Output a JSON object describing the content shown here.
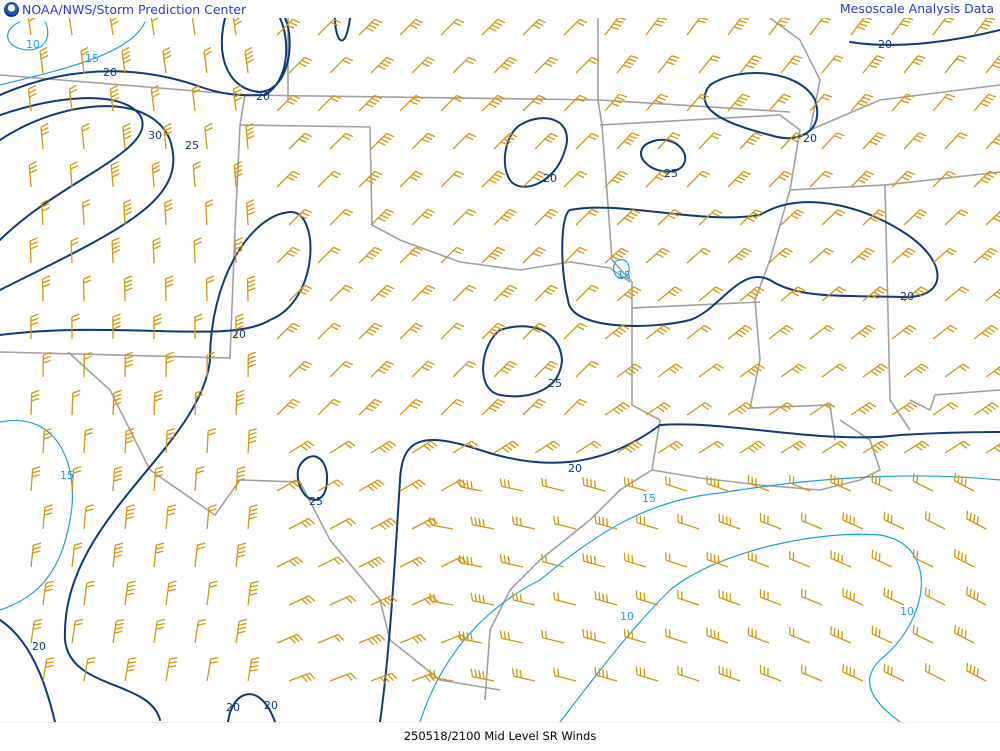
{
  "header": {
    "left_title": "NOAA/NWS/Storm Prediction Center",
    "right_title": "Mesoscale Analysis Data",
    "logo_icon": "noaa-logo"
  },
  "footer": {
    "caption": "250518/2100 Mid Level SR Winds"
  },
  "colors": {
    "barbs": "#d4960a",
    "contour_major": "#0d3a7a",
    "contour_minor": "#1aa0e8",
    "borders": "#a0a0a0",
    "header_text": "#1f3fd0"
  },
  "contour_labels": {
    "l1": "10",
    "l2": "15",
    "l3": "20",
    "l4": "30",
    "l5": "25",
    "l6": "20",
    "l7": "20",
    "l8": "25",
    "l9": "20",
    "l10": "20",
    "l11": "15",
    "l12": "20",
    "l13": "25",
    "l14": "20",
    "l15": "15",
    "l16": "25",
    "l17": "15",
    "l18": "10",
    "l19": "10",
    "l20": "20",
    "l21": "20",
    "l22": "20"
  }
}
